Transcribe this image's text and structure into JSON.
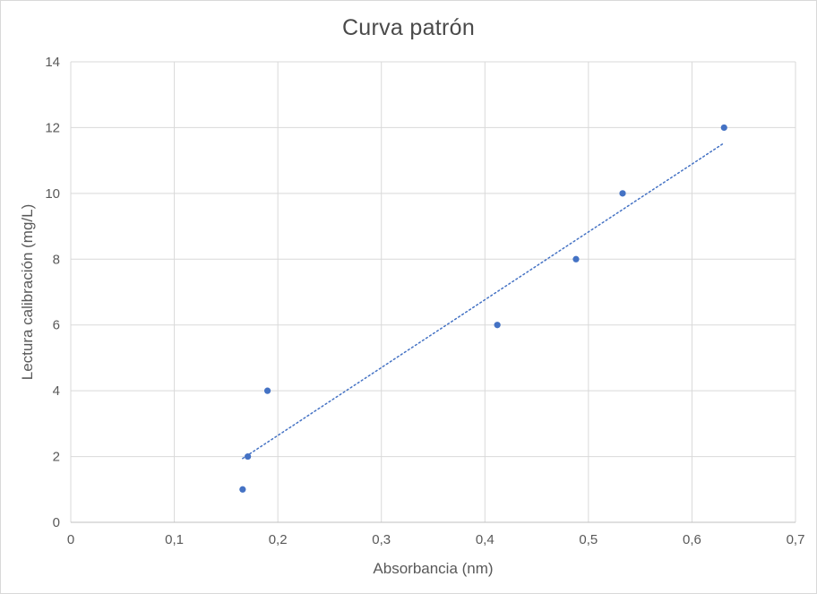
{
  "chart_data": {
    "type": "scatter",
    "title": "Curva patrón",
    "xlabel": "Absorbancia (nm)",
    "ylabel": "Lectura calibración (mg/L)",
    "xlim": [
      0,
      0.7
    ],
    "ylim": [
      0,
      14
    ],
    "grid": true,
    "legend": "none",
    "x_ticks": [
      0,
      0.1,
      0.2,
      0.3,
      0.4,
      0.5,
      0.6,
      0.7
    ],
    "x_tick_labels": [
      "0",
      "0,1",
      "0,2",
      "0,3",
      "0,4",
      "0,5",
      "0,6",
      "0,7"
    ],
    "y_ticks": [
      0,
      2,
      4,
      6,
      8,
      10,
      12,
      14
    ],
    "y_tick_labels": [
      "0",
      "2",
      "4",
      "6",
      "8",
      "10",
      "12",
      "14"
    ],
    "points": [
      {
        "x": 0.166,
        "y": 1
      },
      {
        "x": 0.171,
        "y": 2
      },
      {
        "x": 0.19,
        "y": 4
      },
      {
        "x": 0.412,
        "y": 6
      },
      {
        "x": 0.488,
        "y": 8
      },
      {
        "x": 0.533,
        "y": 10
      },
      {
        "x": 0.631,
        "y": 12
      }
    ],
    "trendline": {
      "style": "dotted",
      "x1": 0.166,
      "y1": 1.94,
      "x2": 0.631,
      "y2": 11.53
    },
    "colors": {
      "marker": "#4472c4",
      "trendline": "#4472c4",
      "gridline": "#d9d9d9",
      "axis_line": "#bfbfbf",
      "tick_text": "#595959",
      "title_text": "#4a4a4a"
    }
  }
}
